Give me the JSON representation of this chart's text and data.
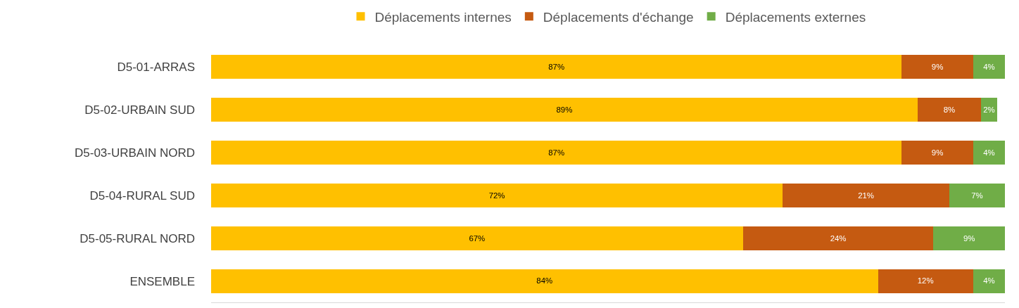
{
  "chart_data": {
    "type": "bar",
    "orientation": "horizontal",
    "stacked": true,
    "legend": "top",
    "categories": [
      "D5-01-ARRAS",
      "D5-02-URBAIN SUD",
      "D5-03-URBAIN NORD",
      "D5-04-RURAL SUD",
      "D5-05-RURAL NORD",
      "ENSEMBLE"
    ],
    "series": [
      {
        "name": "Déplacements internes",
        "color": "#ffc000",
        "values": [
          87,
          89,
          87,
          72,
          67,
          84
        ],
        "value_labels": [
          "87%",
          "89%",
          "87%",
          "72%",
          "67%",
          "84%"
        ]
      },
      {
        "name": "Déplacements d'échange",
        "color": "#c55a11",
        "values": [
          9,
          8,
          9,
          21,
          24,
          12
        ],
        "value_labels": [
          "9%",
          "8%",
          "9%",
          "21%",
          "24%",
          "12%"
        ]
      },
      {
        "name": "Déplacements externes",
        "color": "#70ad47",
        "values": [
          4,
          2,
          4,
          7,
          9,
          4
        ],
        "value_labels": [
          "4%",
          "2%",
          "4%",
          "7%",
          "9%",
          "4%"
        ]
      }
    ]
  }
}
